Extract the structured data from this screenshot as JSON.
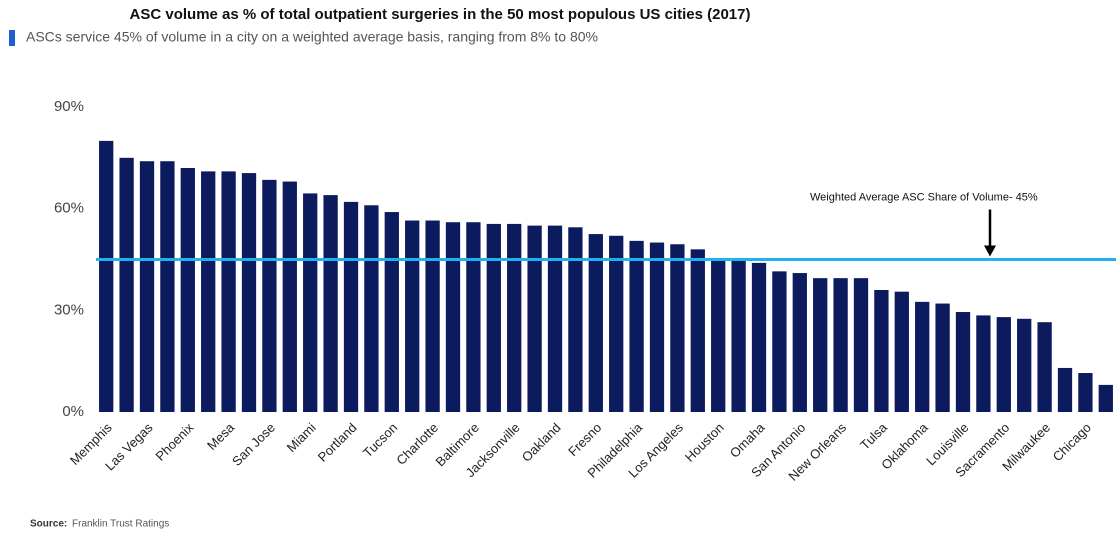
{
  "chart_data": {
    "type": "bar",
    "title": "ASC volume as % of total outpatient surgeries in the 50 most populous US cities (2017)",
    "subtitle": "ASCs service 45% of volume in a city on a weighted average basis, ranging from 8% to 80%",
    "source_label": "Source:",
    "source": "Franklin Trust Ratings",
    "categories": [
      "Memphis",
      null,
      "Las Vegas",
      null,
      "Phoenix",
      null,
      "Mesa",
      null,
      "San Jose",
      null,
      "Miami",
      null,
      "Portland",
      null,
      "Tucson",
      null,
      "Charlotte",
      null,
      "Baltimore",
      null,
      "Jacksonville",
      null,
      "Oakland",
      null,
      "Fresno",
      null,
      "Philadelphia",
      null,
      "Los Angeles",
      null,
      "Houston",
      null,
      "Omaha",
      null,
      "San Antonio",
      null,
      "New Orleans",
      null,
      "Tulsa",
      null,
      "Oklahoma",
      null,
      "Louisville",
      null,
      "Sacramento",
      null,
      "Milwaukee",
      null,
      "Chicago",
      null
    ],
    "values": [
      80,
      75,
      74,
      74,
      72,
      71,
      71,
      70.5,
      68.5,
      68,
      64.5,
      64,
      62,
      61,
      59,
      56.5,
      56.5,
      56,
      56,
      55.5,
      55.5,
      55,
      55,
      54.5,
      52.5,
      52,
      50.5,
      50,
      49.5,
      48,
      45,
      45,
      44,
      41.5,
      41,
      39.5,
      39.5,
      39.5,
      36,
      35.5,
      32.5,
      32,
      29.5,
      28.5,
      28,
      27.5,
      26.5,
      13,
      11.5,
      8
    ],
    "color": "#0c1a5e",
    "ylim": [
      0,
      90
    ],
    "yticks": [
      {
        "value": 0,
        "label": "0%"
      },
      {
        "value": 30,
        "label": "30%"
      },
      {
        "value": 60,
        "label": "60%"
      },
      {
        "value": 90,
        "label": "90%"
      }
    ],
    "grid": false,
    "reference_line": {
      "value": 45,
      "label": "Weighted Average ASC Share of Volume- 45%",
      "color": "#1fb2ef"
    }
  }
}
